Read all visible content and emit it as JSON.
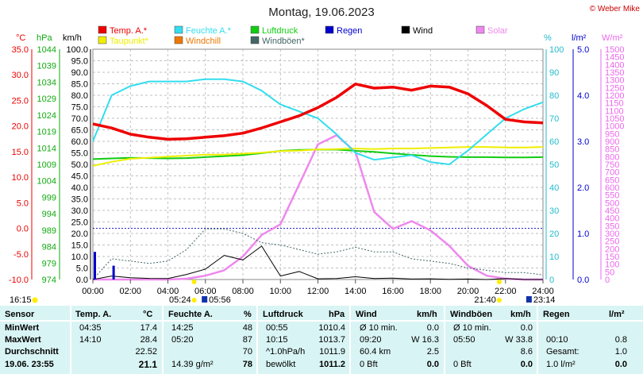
{
  "title": "Montag, 19.06.2023",
  "credit": "© Weber Mike",
  "colors": {
    "temp": "#ee0000",
    "humidity": "#33ddee",
    "pressure": "#11cc11",
    "rain": "#0000cc",
    "wind": "#000000",
    "solar": "#ee88ee",
    "dewpoint": "#eeee00",
    "windchill": "#ee7700",
    "gust": "#446666"
  },
  "legend": [
    {
      "name": "Temp. A.*",
      "color": "#ee0000"
    },
    {
      "name": "Feuchte A.*",
      "color": "#33ddee"
    },
    {
      "name": "Luftdruck",
      "color": "#11cc11"
    },
    {
      "name": "Regen",
      "color": "#0000cc"
    },
    {
      "name": "Wind",
      "color": "#000000"
    },
    {
      "name": "Solar",
      "color": "#ee88ee"
    },
    {
      "name": "Taupunkt*",
      "color": "#eeee00"
    },
    {
      "name": "Windchill",
      "color": "#ee7700"
    },
    {
      "name": "Windböen*",
      "color": "#446666"
    }
  ],
  "axis_units": {
    "temp": "°C",
    "pressure": "hPa",
    "wind": "km/h",
    "humidity": "%",
    "rain": "l/m²",
    "solar": "W/m²"
  },
  "axis_ticks": {
    "temp": [
      "35.0",
      "30.0",
      "25.0",
      "20.0",
      "15.0",
      "10.0",
      "5.0",
      "0.0",
      "-5.0",
      "-10.0"
    ],
    "pressure": [
      "1044",
      "1039",
      "1034",
      "1029",
      "1024",
      "1019",
      "1014",
      "1009",
      "1004",
      "999",
      "994",
      "989",
      "984",
      "979",
      "974"
    ],
    "wind": [
      "100.0",
      "95.0",
      "90.0",
      "85.0",
      "80.0",
      "75.0",
      "70.0",
      "65.0",
      "60.0",
      "55.0",
      "50.0",
      "45.0",
      "40.0",
      "35.0",
      "30.0",
      "25.0",
      "20.0",
      "15.0",
      "10.0",
      "5.0",
      "0.0"
    ],
    "humidity": [
      "100",
      "90",
      "80",
      "70",
      "60",
      "50",
      "40",
      "30",
      "20",
      "10",
      "0"
    ],
    "rain": [
      "5.0",
      "4.0",
      "3.0",
      "2.0",
      "1.0",
      "0.0"
    ],
    "solar": [
      "1500",
      "1450",
      "1400",
      "1350",
      "1300",
      "1250",
      "1200",
      "1150",
      "1100",
      "1050",
      "1000",
      "950",
      "900",
      "850",
      "800",
      "750",
      "700",
      "650",
      "600",
      "550",
      "500",
      "450",
      "400",
      "350",
      "300",
      "250",
      "200",
      "150",
      "100",
      "50",
      "0"
    ]
  },
  "x_ticks": [
    "00:00",
    "02:00",
    "04:00",
    "06:00",
    "08:00",
    "10:00",
    "12:00",
    "14:00",
    "16:00",
    "18:00",
    "20:00",
    "22:00",
    "24:00"
  ],
  "sun_labels": {
    "left_time": "16:15",
    "sunrise": "05:24",
    "moonrise": "05:56",
    "sunset": "21:40",
    "moonset": "23:14"
  },
  "chart_data": {
    "type": "line",
    "x": [
      "00:00",
      "01:00",
      "02:00",
      "03:00",
      "04:00",
      "05:00",
      "06:00",
      "07:00",
      "08:00",
      "09:00",
      "10:00",
      "11:00",
      "12:00",
      "13:00",
      "14:00",
      "15:00",
      "16:00",
      "17:00",
      "18:00",
      "19:00",
      "20:00",
      "21:00",
      "22:00",
      "23:00",
      "24:00"
    ],
    "series": [
      {
        "name": "Temp. A.*",
        "axis": "temp",
        "values": [
          20.4,
          19.6,
          18.4,
          17.8,
          17.4,
          17.5,
          17.8,
          18.1,
          18.6,
          19.6,
          20.8,
          22.0,
          23.6,
          25.6,
          28.2,
          27.4,
          27.6,
          27.0,
          27.8,
          27.6,
          26.3,
          24.0,
          21.3,
          20.8,
          20.6
        ]
      },
      {
        "name": "Feuchte A.*",
        "axis": "humidity",
        "values": [
          60,
          80,
          84,
          86,
          86,
          86,
          87,
          87,
          86,
          82,
          76,
          73,
          70,
          63,
          55,
          52,
          53,
          54,
          51,
          50,
          56,
          63,
          70,
          74,
          77
        ]
      },
      {
        "name": "Luftdruck",
        "axis": "pressure",
        "values": [
          1010.6,
          1010.8,
          1011.0,
          1010.9,
          1010.8,
          1010.9,
          1011.2,
          1011.5,
          1011.8,
          1012.4,
          1013.1,
          1013.4,
          1013.5,
          1013.5,
          1013.1,
          1012.8,
          1012.3,
          1011.9,
          1011.5,
          1011.3,
          1011.2,
          1011.2,
          1011.1,
          1011.1,
          1011.2
        ]
      },
      {
        "name": "Taupunkt*",
        "axis": "temp",
        "values": [
          12.2,
          13.0,
          13.6,
          13.8,
          14.0,
          14.2,
          14.4,
          14.4,
          14.6,
          14.8,
          15.1,
          15.2,
          15.4,
          15.5,
          15.6,
          15.5,
          15.6,
          15.6,
          15.7,
          15.8,
          15.9,
          15.9,
          15.8,
          15.8,
          15.9
        ]
      },
      {
        "name": "Wind",
        "axis": "wind",
        "values": [
          0,
          1.5,
          0.8,
          0.5,
          0.4,
          2.2,
          4.5,
          10.5,
          8.5,
          14.5,
          1.5,
          3.5,
          0.3,
          0.4,
          1.2,
          0.4,
          0.6,
          0.2,
          0.3,
          0.1,
          0.2,
          0,
          0.4,
          0,
          0
        ]
      },
      {
        "name": "Windböen*",
        "axis": "wind",
        "values": [
          0,
          9,
          8,
          7,
          8,
          13,
          22,
          22,
          20,
          16,
          15,
          13,
          11,
          12,
          14,
          12,
          12,
          9,
          8,
          7,
          5,
          4,
          3,
          3,
          2
        ]
      },
      {
        "name": "Solar",
        "axis": "solar",
        "values": [
          0,
          0,
          0,
          0,
          0,
          5,
          25,
          60,
          150,
          290,
          360,
          620,
          880,
          940,
          830,
          440,
          330,
          380,
          320,
          220,
          90,
          25,
          5,
          0,
          0
        ]
      },
      {
        "name": "Regen",
        "axis": "rain",
        "values": [
          0.6,
          0.3,
          0,
          0,
          0,
          0,
          0,
          0,
          0,
          0,
          0,
          0,
          0,
          0,
          0,
          0,
          0,
          0,
          0,
          0,
          0,
          0,
          0,
          0,
          0
        ]
      }
    ],
    "ylim": {
      "temp": [
        -10,
        35
      ],
      "humidity": [
        0,
        100
      ],
      "pressure": [
        974,
        1044
      ],
      "wind": [
        0,
        100
      ],
      "rain": [
        0,
        5
      ],
      "solar": [
        0,
        1500
      ]
    },
    "grid": true
  },
  "stats": {
    "headers": {
      "sensor": "Sensor",
      "temp": "Temp. A.",
      "temp_unit": "°C",
      "hum": "Feuchte A.",
      "hum_unit": "%",
      "press": "Luftdruck",
      "press_unit": "hPa",
      "wind": "Wind",
      "wind_unit": "km/h",
      "gust": "Windböen",
      "gust_unit": "km/h",
      "rain": "Regen",
      "rain_unit": "l/m²"
    },
    "rows": [
      {
        "label": "MinWert",
        "temp_time": "04:35",
        "temp_val": "17.4",
        "hum_time": "14:25",
        "hum_val": "48",
        "press_time": "00:55",
        "press_val": "1010.4",
        "wind_desc": "Ø 10 min.",
        "wind_val": "0.0",
        "gust_desc": "Ø 10 min.",
        "gust_val": "0.0",
        "rain_desc": "",
        "rain_val": ""
      },
      {
        "label": "MaxWert",
        "temp_time": "14:10",
        "temp_val": "28.4",
        "hum_time": "05:20",
        "hum_val": "87",
        "press_time": "10:15",
        "press_val": "1013.7",
        "wind_desc": "09:20",
        "wind_val": "W 16.3",
        "gust_desc": "05:50",
        "gust_val": "W 33.8",
        "rain_desc": "00:10",
        "rain_val": "0.8"
      },
      {
        "label": "Durchschnitt",
        "temp_time": "",
        "temp_val": "22.52",
        "hum_time": "",
        "hum_val": "70",
        "press_time": "^1.0hPa/h",
        "press_val": "1011.9",
        "wind_desc": "60.4 km",
        "wind_val": "2.5",
        "gust_desc": "",
        "gust_val": "8.6",
        "rain_desc": "Gesamt:",
        "rain_val": "1.0"
      },
      {
        "label": "19.06. 23:55",
        "temp_time": "",
        "temp_val": "21.1",
        "hum_time": "14.39 g/m²",
        "hum_val": "78",
        "press_time": "bewölkt",
        "press_val": "1011.2",
        "wind_desc": "0 Bft",
        "wind_val": "0.0",
        "gust_desc": "0 Bft",
        "gust_val": "0.0",
        "rain_desc": "1.0 l/m²",
        "rain_val": "0.0"
      }
    ]
  }
}
